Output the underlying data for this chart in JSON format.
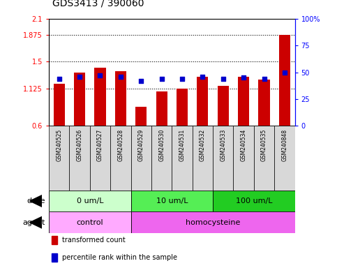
{
  "title": "GDS3413 / 390060",
  "samples": [
    "GSM240525",
    "GSM240526",
    "GSM240527",
    "GSM240528",
    "GSM240529",
    "GSM240530",
    "GSM240531",
    "GSM240532",
    "GSM240533",
    "GSM240534",
    "GSM240535",
    "GSM240848"
  ],
  "bar_values": [
    1.19,
    1.345,
    1.415,
    1.37,
    0.87,
    1.08,
    1.12,
    1.285,
    1.165,
    1.29,
    1.25,
    1.875
  ],
  "dot_values": [
    44,
    46,
    47,
    46,
    42,
    44,
    44,
    46,
    44,
    45,
    44,
    50
  ],
  "ylim_left": [
    0.6,
    2.1
  ],
  "ylim_right": [
    0,
    100
  ],
  "yticks_left": [
    0.6,
    1.125,
    1.5,
    1.875,
    2.1
  ],
  "ytick_labels_left": [
    "0.6",
    "1.125",
    "1.5",
    "1.875",
    "2.1"
  ],
  "yticks_right": [
    0,
    25,
    50,
    75,
    100
  ],
  "ytick_labels_right": [
    "0",
    "25",
    "50",
    "75",
    "100%"
  ],
  "hlines": [
    1.875,
    1.5,
    1.125
  ],
  "bar_color": "#cc0000",
  "dot_color": "#0000cc",
  "bar_width": 0.55,
  "dose_groups": [
    {
      "label": "0 um/L",
      "start": 0,
      "end": 4,
      "color": "#ccffcc"
    },
    {
      "label": "10 um/L",
      "start": 4,
      "end": 8,
      "color": "#55ee55"
    },
    {
      "label": "100 um/L",
      "start": 8,
      "end": 12,
      "color": "#22cc22"
    }
  ],
  "agent_groups": [
    {
      "label": "control",
      "start": 0,
      "end": 4,
      "color": "#ffaaff"
    },
    {
      "label": "homocysteine",
      "start": 4,
      "end": 12,
      "color": "#ee66ee"
    }
  ],
  "dose_label": "dose",
  "agent_label": "agent",
  "legend_items": [
    {
      "label": "transformed count",
      "color": "#cc0000"
    },
    {
      "label": "percentile rank within the sample",
      "color": "#0000cc"
    }
  ],
  "bg_color": "#ffffff",
  "plot_bg_color": "#ffffff",
  "sample_bg_color": "#d8d8d8",
  "title_fontsize": 10,
  "tick_fontsize": 7,
  "label_fontsize": 8,
  "sample_fontsize": 5.5,
  "legend_fontsize": 7
}
